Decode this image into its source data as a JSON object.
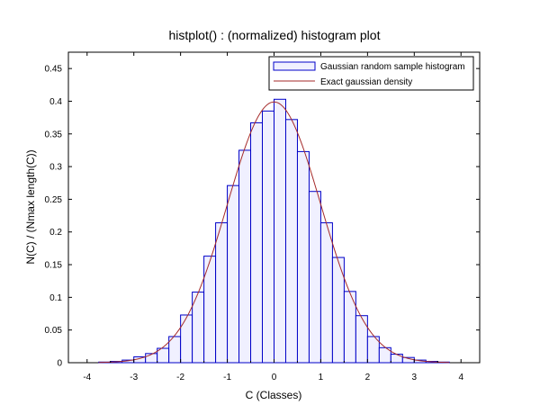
{
  "chart_data": {
    "type": "bar",
    "title": "histplot() : (normalized) histogram plot",
    "xlabel": "C (Classes)",
    "ylabel": "N(C) / (Nmax length(C))",
    "xlim": [
      -4.4,
      4.4
    ],
    "ylim": [
      0,
      0.475
    ],
    "x_ticks": [
      -4,
      -3,
      -2,
      -1,
      0,
      1,
      2,
      3,
      4
    ],
    "y_ticks": [
      0,
      0.05,
      0.1,
      0.15,
      0.2,
      0.25,
      0.3,
      0.35,
      0.4,
      0.45
    ],
    "grid": false,
    "legend_position": "top-right",
    "series": [
      {
        "name": "Gaussian random sample histogram",
        "kind": "histogram",
        "bin_edges": [
          -3.75,
          -3.5,
          -3.25,
          -3.0,
          -2.75,
          -2.5,
          -2.25,
          -2.0,
          -1.75,
          -1.5,
          -1.25,
          -1.0,
          -0.75,
          -0.5,
          -0.25,
          0.0,
          0.25,
          0.5,
          0.75,
          1.0,
          1.25,
          1.5,
          1.75,
          2.0,
          2.25,
          2.5,
          2.75,
          3.0,
          3.25,
          3.5,
          3.75
        ],
        "values": [
          0.001,
          0.002,
          0.004,
          0.009,
          0.014,
          0.022,
          0.04,
          0.073,
          0.108,
          0.163,
          0.214,
          0.271,
          0.325,
          0.367,
          0.385,
          0.403,
          0.372,
          0.323,
          0.262,
          0.214,
          0.161,
          0.109,
          0.072,
          0.04,
          0.023,
          0.013,
          0.008,
          0.004,
          0.002,
          0.001
        ],
        "fill_color": "#f0f0ff",
        "edge_color": "#0000c8"
      },
      {
        "name": "Exact gaussian density",
        "kind": "line",
        "function": "gaussian",
        "mean": 0,
        "std": 1,
        "x_range": [
          -3.75,
          3.75
        ],
        "color": "#a52a2a"
      }
    ]
  }
}
